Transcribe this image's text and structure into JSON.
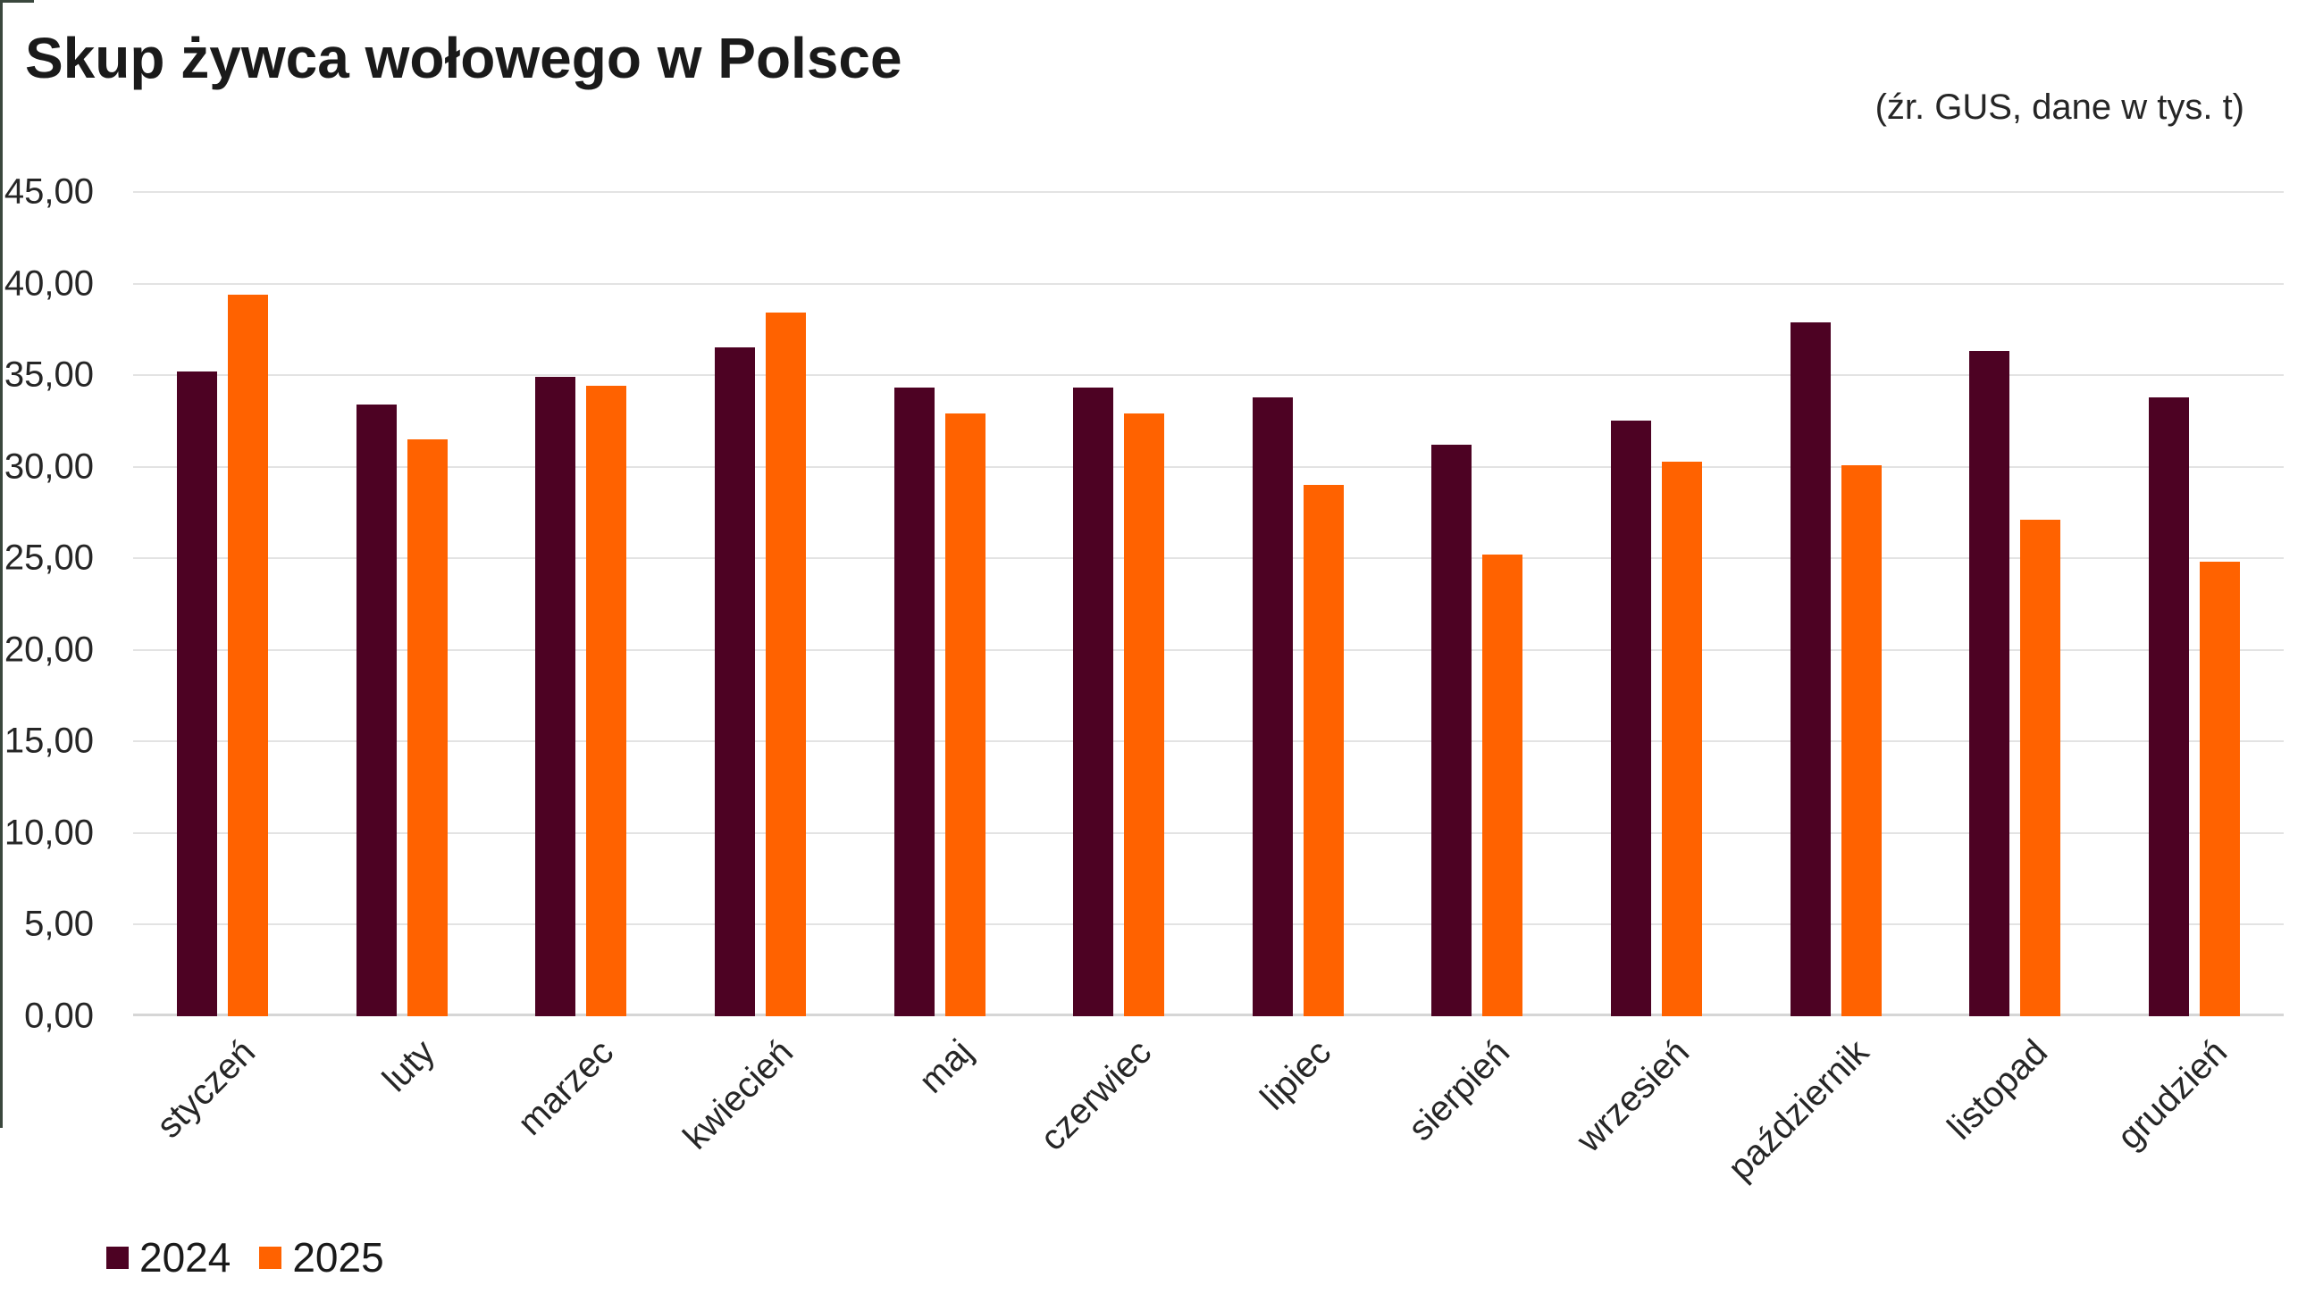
{
  "header": {
    "title": "Skup żywca wołowego w Polsce",
    "source_note": "(źr. GUS, dane w tys. t)"
  },
  "chart_data": {
    "type": "bar",
    "title": "Skup żywca wołowego w Polsce",
    "subtitle": "(źr. GUS, dane w tys. t)",
    "unit": "tys. t",
    "source": "GUS",
    "categories": [
      "styczeń",
      "luty",
      "marzec",
      "kwiecień",
      "maj",
      "czerwiec",
      "lipiec",
      "sierpień",
      "wrzesień",
      "październik",
      "listopad",
      "grudzień"
    ],
    "series": [
      {
        "name": "2024",
        "color": "#4D0223",
        "values": [
          35.2,
          33.4,
          34.9,
          36.5,
          34.3,
          34.3,
          33.8,
          31.2,
          32.5,
          37.9,
          36.3,
          33.8
        ]
      },
      {
        "name": "2025",
        "color": "#FF6200",
        "values": [
          39.4,
          31.5,
          34.4,
          38.4,
          32.9,
          32.9,
          29.0,
          25.2,
          30.3,
          30.1,
          27.1,
          24.8
        ]
      }
    ],
    "ylim": [
      0,
      45
    ],
    "y_tick_step": 5,
    "y_tick_labels": [
      "45,00",
      "40,00",
      "35,00",
      "30,00",
      "25,00",
      "20,00",
      "15,00",
      "10,00",
      "5,00",
      "0,00"
    ],
    "grid": "horizontal",
    "legend_position": "bottom-left",
    "xlabel": "",
    "ylabel": ""
  },
  "colors": {
    "series_2024": "#4D0223",
    "series_2025": "#FF6200",
    "gridline": "#E3E3E3",
    "axis_line": "#D6D6D6",
    "text": "#262626",
    "title_text": "#1A1A1A",
    "edge_line": "#3A473D",
    "background": "#FFFFFF"
  }
}
